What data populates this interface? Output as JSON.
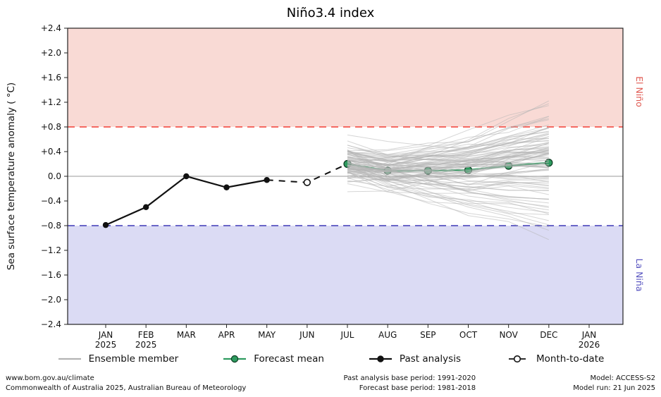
{
  "title": "Niño3.4 index",
  "ylabel": "Sea surface temperature anomaly ( °C)",
  "legend": {
    "items": [
      {
        "label": "Ensemble member"
      },
      {
        "label": "Forecast mean"
      },
      {
        "label": "Past analysis"
      },
      {
        "label": "Month-to-date"
      }
    ]
  },
  "footer": {
    "site": "www.bom.gov.au/climate",
    "copyright": "Commonwealth of Australia 2025, Australian Bureau of Meteorology",
    "past_base": "Past analysis base period: 1991-2020",
    "forecast_base": "Forecast base period: 1981-2018",
    "model": "Model: ACCESS-S2",
    "model_run": "Model run: 21 Jun 2025"
  },
  "colors": {
    "forecast_green": "#2e9b5f",
    "forecast_edge": "#0d3b22",
    "past_black": "#111111",
    "mtd_fill": "#ffffff",
    "ensemble_gray": "#b4b4b4",
    "el_nino_fill": "#f9dad5",
    "el_nino_line": "#f4574f",
    "el_nino_text": "#e05a52",
    "la_nina_fill": "#dbdbf4",
    "la_nina_line": "#5753c0",
    "la_nina_text": "#5753c0",
    "zero_line": "#9a9a9a",
    "frame": "#222222"
  },
  "chart_data": {
    "type": "line",
    "title": "Niño3.4 index",
    "xlabel": "",
    "ylabel": "Sea surface temperature anomaly ( °C)",
    "ylim": [
      -2.4,
      2.4
    ],
    "grid": false,
    "legend_position": "bottom",
    "y_ticks": [
      {
        "label": "+2.4",
        "v": 2.4
      },
      {
        "label": "+2.0",
        "v": 2.0
      },
      {
        "label": "+1.6",
        "v": 1.6
      },
      {
        "label": "+1.2",
        "v": 1.2
      },
      {
        "label": "+0.8",
        "v": 0.8
      },
      {
        "label": "+0.4",
        "v": 0.4
      },
      {
        "label": "0.0",
        "v": 0.0
      },
      {
        "label": "−0.4",
        "v": -0.4
      },
      {
        "label": "−0.8",
        "v": -0.8
      },
      {
        "label": "−1.2",
        "v": -1.2
      },
      {
        "label": "−1.6",
        "v": -1.6
      },
      {
        "label": "−2.0",
        "v": -2.0
      },
      {
        "label": "−2.4",
        "v": -2.4
      }
    ],
    "x_ticks": [
      {
        "label": "JAN",
        "year": "2025"
      },
      {
        "label": "FEB",
        "year": "2025"
      },
      {
        "label": "MAR"
      },
      {
        "label": "APR"
      },
      {
        "label": "MAY"
      },
      {
        "label": "JUN"
      },
      {
        "label": "JUL"
      },
      {
        "label": "AUG"
      },
      {
        "label": "SEP"
      },
      {
        "label": "OCT"
      },
      {
        "label": "NOV"
      },
      {
        "label": "DEC"
      },
      {
        "label": "JAN",
        "year": "2026"
      }
    ],
    "bands": {
      "el_nino": {
        "label": "El Niño",
        "top": 2.4,
        "bottom": 0.8,
        "threshold": 0.8
      },
      "la_nina": {
        "label": "La Niña",
        "top": -0.8,
        "bottom": -2.4,
        "threshold": -0.8
      }
    },
    "series": {
      "past_analysis": {
        "name": "Past analysis",
        "months": [
          "JAN",
          "FEB",
          "MAR",
          "APR",
          "MAY"
        ],
        "x": [
          0,
          1,
          2,
          3,
          4
        ],
        "values": [
          -0.79,
          -0.5,
          0.0,
          -0.18,
          -0.06
        ]
      },
      "month_to_date": {
        "name": "Month-to-date",
        "months": [
          "JUN"
        ],
        "x": [
          5
        ],
        "values": [
          -0.1
        ]
      },
      "connector": {
        "x": [
          4,
          5,
          6
        ],
        "values": [
          -0.06,
          -0.1,
          0.2
        ]
      },
      "forecast_mean": {
        "name": "Forecast mean",
        "months": [
          "JUL",
          "AUG",
          "SEP",
          "OCT",
          "NOV",
          "DEC"
        ],
        "x": [
          6,
          7,
          8,
          9,
          10,
          11
        ],
        "values": [
          0.2,
          0.09,
          0.09,
          0.1,
          0.17,
          0.22
        ]
      },
      "ensemble": {
        "name": "Ensemble member",
        "count": 99,
        "x": [
          6,
          7,
          8,
          9,
          10,
          11
        ],
        "start_sd": 0.14,
        "end_sd": 0.45,
        "wiggle_sd": 0.04,
        "seed": 20250621
      }
    }
  }
}
